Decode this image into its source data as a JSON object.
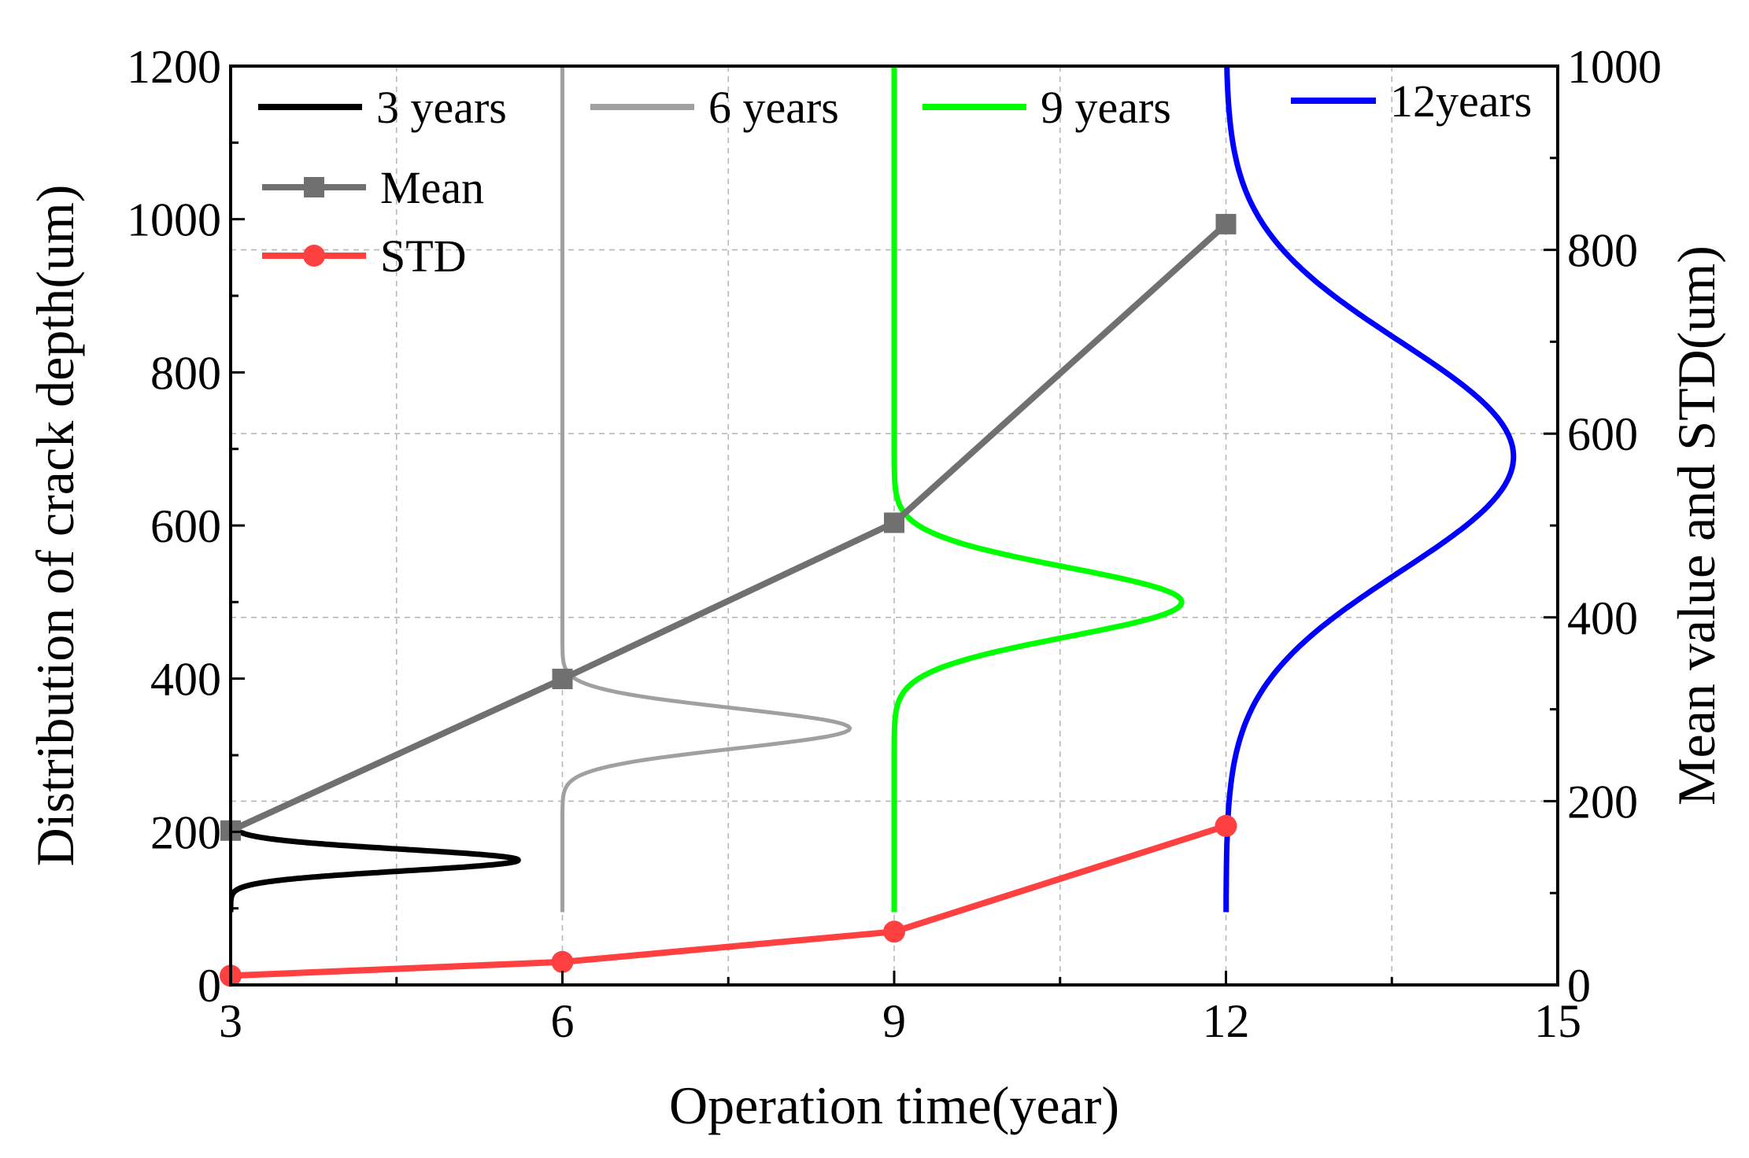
{
  "chart_data": {
    "type": "line",
    "title": "",
    "xlabel": "Operation time(year)",
    "ylabel": "Distribution of crack depth(um)",
    "y2label": "Mean value and STD(um)",
    "xlim": [
      3,
      15
    ],
    "ylim": [
      0,
      1200
    ],
    "y2lim": [
      0,
      1000
    ],
    "x_ticks": [
      3,
      6,
      9,
      12,
      15
    ],
    "y_ticks": [
      0,
      200,
      400,
      600,
      800,
      1000,
      1200
    ],
    "y2_ticks": [
      0,
      200,
      400,
      600,
      800,
      1000
    ],
    "grid": true,
    "legend_position": "top",
    "distributions": [
      {
        "name": "3 years",
        "color": "#000000",
        "base_x": 3,
        "mu": 163,
        "sigma": 14,
        "peak_x": 5.6,
        "y_range": [
          95,
          210
        ]
      },
      {
        "name": "6 years",
        "color": "#a0a0a0",
        "base_x": 6,
        "mu": 335,
        "sigma": 26,
        "peak_x": 8.6,
        "y_range": [
          95,
          1200
        ]
      },
      {
        "name": "9 years",
        "color": "#00ff00",
        "base_x": 9,
        "mu": 500,
        "sigma": 45,
        "peak_x": 11.6,
        "y_range": [
          95,
          1200
        ]
      },
      {
        "name": "12years",
        "color": "#0000ff",
        "base_x": 12,
        "mu": 690,
        "sigma": 150,
        "peak_x": 14.6,
        "y_range": [
          95,
          1200
        ]
      }
    ],
    "series": [
      {
        "name": "Mean",
        "color": "#707070",
        "marker": "square",
        "axis": "right",
        "x": [
          3,
          6,
          9,
          12
        ],
        "values": [
          168,
          333,
          503,
          828
        ]
      },
      {
        "name": "STD",
        "color": "#ff4040",
        "marker": "circle",
        "axis": "right",
        "x": [
          3,
          6,
          9,
          12
        ],
        "values": [
          10,
          25,
          58,
          173
        ]
      }
    ]
  }
}
